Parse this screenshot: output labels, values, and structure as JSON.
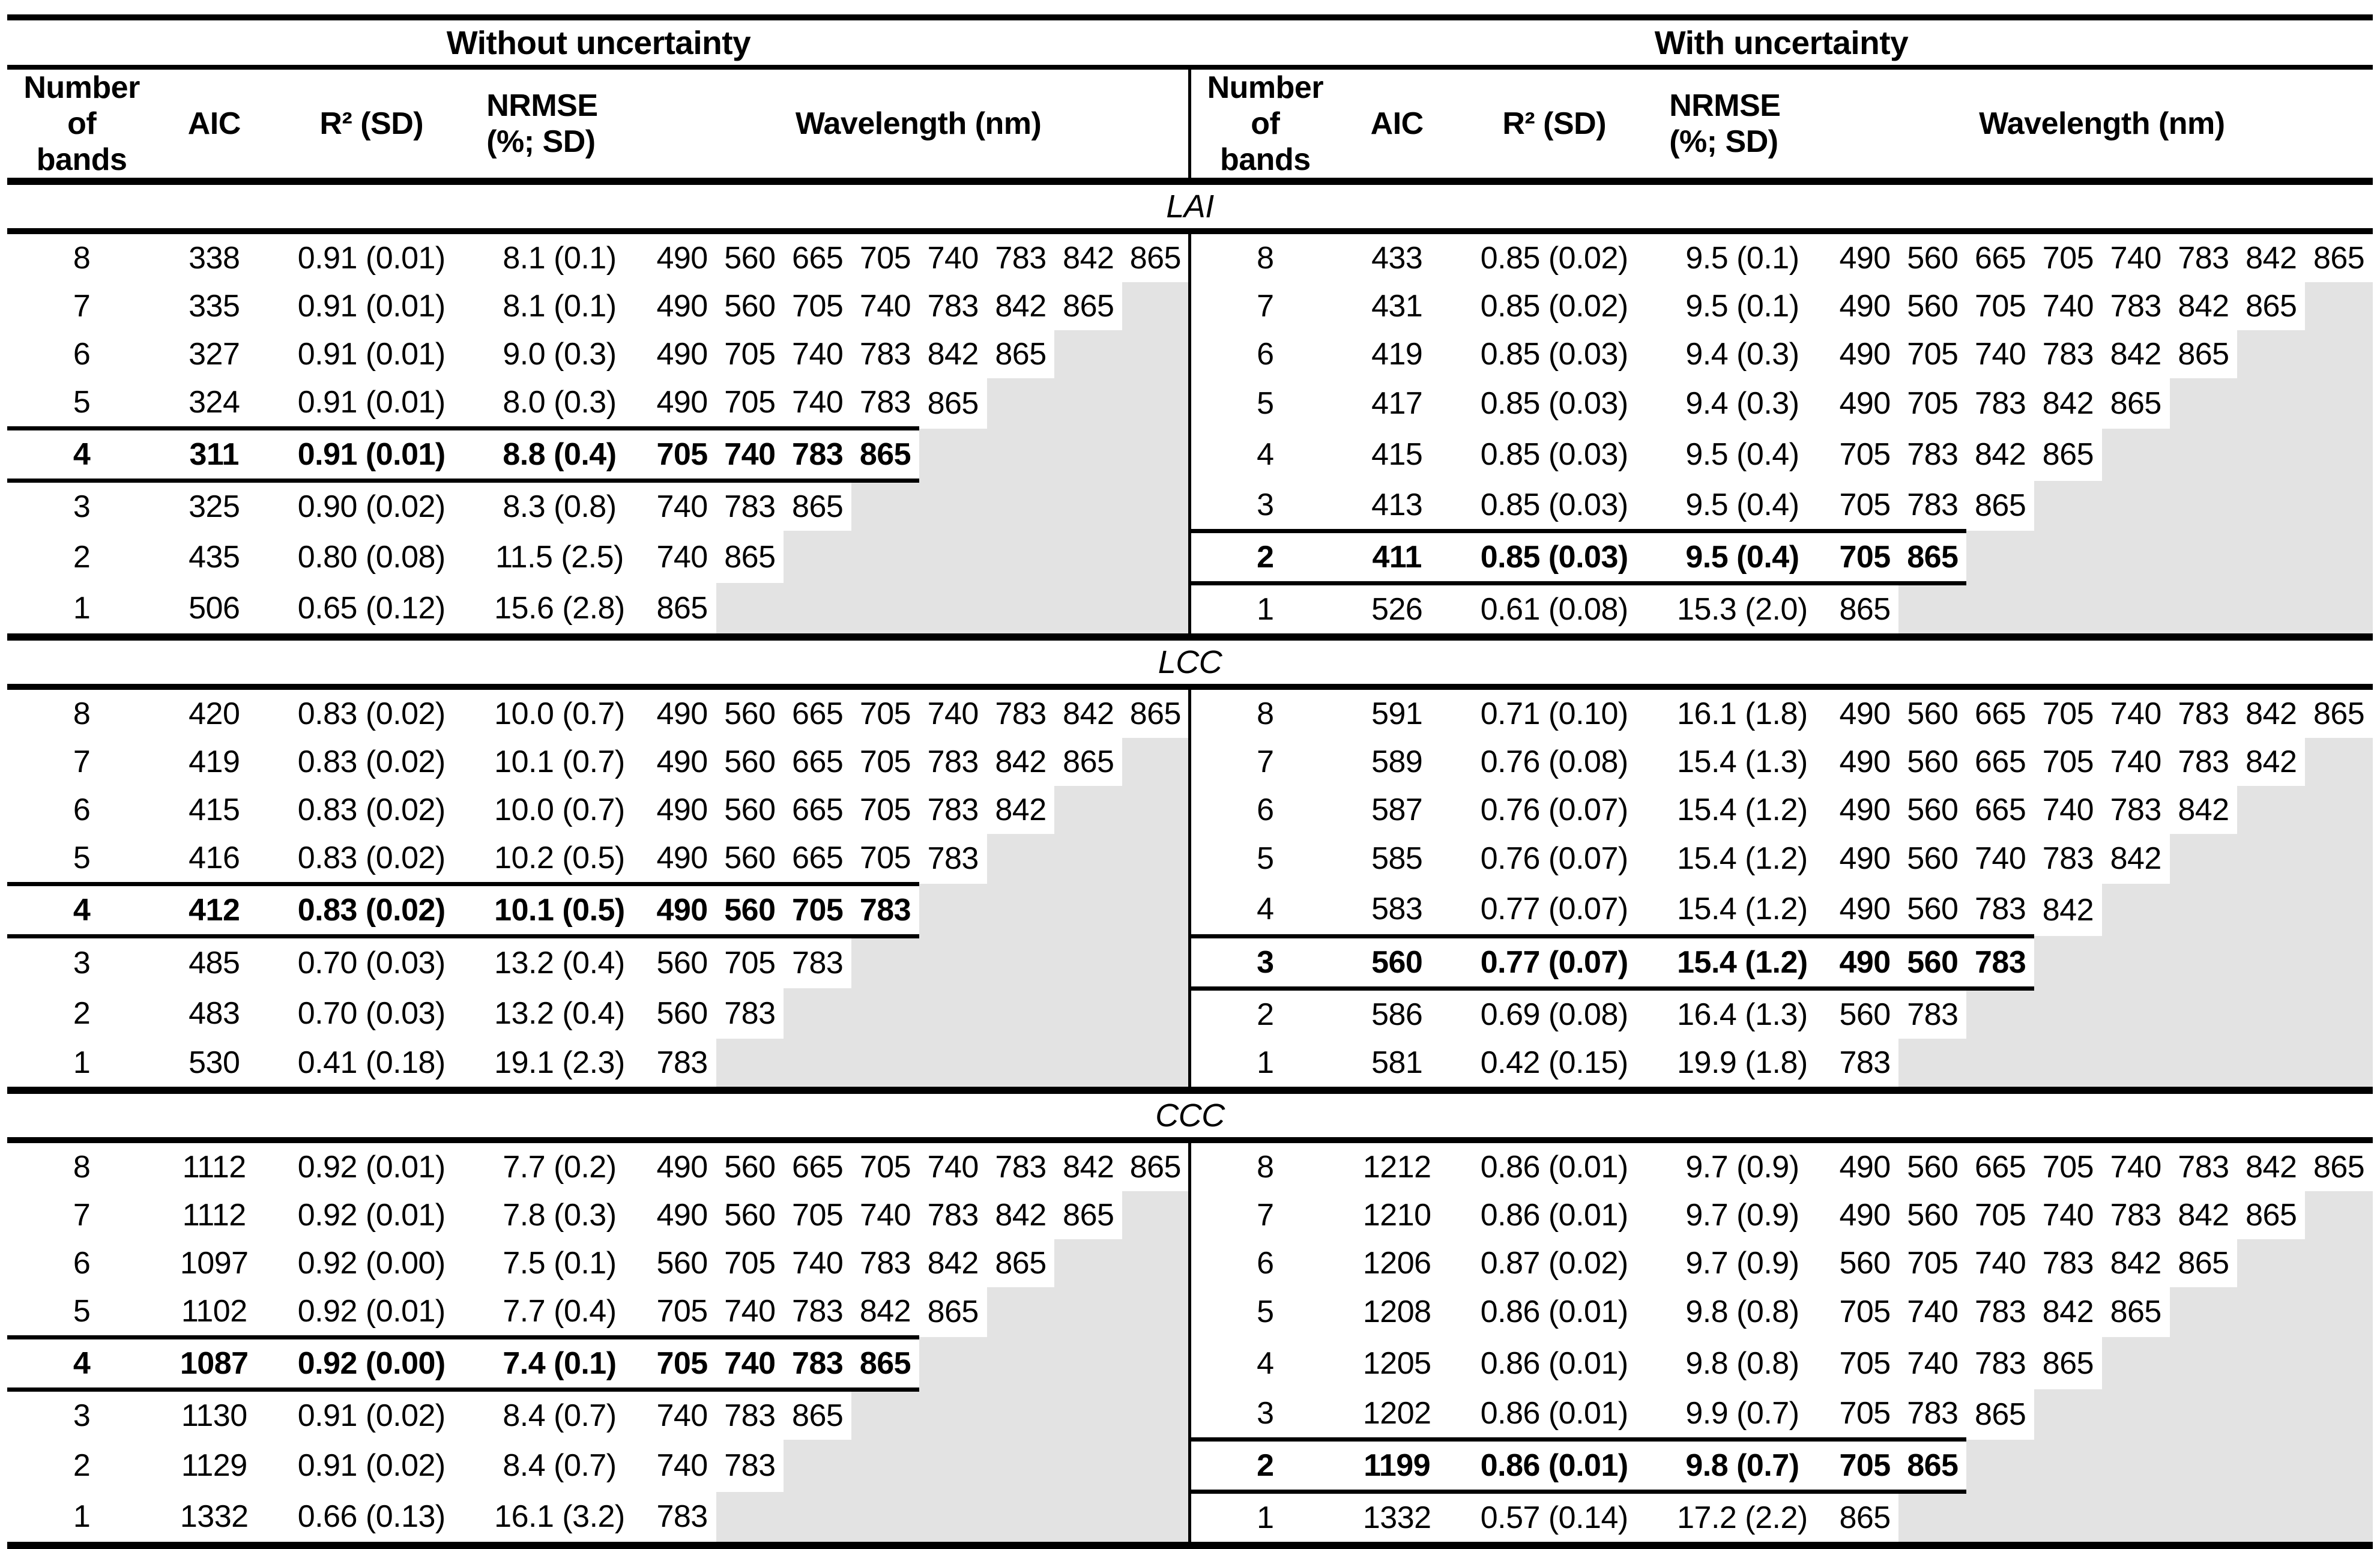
{
  "header": {
    "left_title": "Without uncertainty",
    "right_title": "With uncertainty",
    "columns": {
      "bands": "Number of\nbands",
      "aic": "AIC",
      "r2": "R² (SD)",
      "nrmse": "NRMSE\n(%; SD)",
      "wavelength": "Wavelength (nm)"
    }
  },
  "styles": {
    "highlight_gray": "#e3e3e3",
    "rule_color": "#000000"
  },
  "sections": [
    {
      "label": "LAI",
      "left": {
        "rows": [
          {
            "bands": "8",
            "aic": "338",
            "r2": "0.91 (0.01)",
            "nrmse": "8.1 (0.1)",
            "wavelengths": [
              "490",
              "560",
              "665",
              "705",
              "740",
              "783",
              "842",
              "865"
            ],
            "bold": false
          },
          {
            "bands": "7",
            "aic": "335",
            "r2": "0.91 (0.01)",
            "nrmse": "8.1 (0.1)",
            "wavelengths": [
              "490",
              "560",
              "705",
              "740",
              "783",
              "842",
              "865"
            ],
            "bold": false
          },
          {
            "bands": "6",
            "aic": "327",
            "r2": "0.91 (0.01)",
            "nrmse": "9.0 (0.3)",
            "wavelengths": [
              "490",
              "705",
              "740",
              "783",
              "842",
              "865"
            ],
            "bold": false
          },
          {
            "bands": "5",
            "aic": "324",
            "r2": "0.91 (0.01)",
            "nrmse": "8.0 (0.3)",
            "wavelengths": [
              "490",
              "705",
              "740",
              "783",
              "865"
            ],
            "bold": false
          },
          {
            "bands": "4",
            "aic": "311",
            "r2": "0.91 (0.01)",
            "nrmse": "8.8 (0.4)",
            "wavelengths": [
              "705",
              "740",
              "783",
              "865"
            ],
            "bold": true
          },
          {
            "bands": "3",
            "aic": "325",
            "r2": "0.90 (0.02)",
            "nrmse": "8.3 (0.8)",
            "wavelengths": [
              "740",
              "783",
              "865"
            ],
            "bold": false
          },
          {
            "bands": "2",
            "aic": "435",
            "r2": "0.80 (0.08)",
            "nrmse": "11.5 (2.5)",
            "wavelengths": [
              "740",
              "865"
            ],
            "bold": false
          },
          {
            "bands": "1",
            "aic": "506",
            "r2": "0.65 (0.12)",
            "nrmse": "15.6 (2.8)",
            "wavelengths": [
              "865"
            ],
            "bold": false
          }
        ]
      },
      "right": {
        "rows": [
          {
            "bands": "8",
            "aic": "433",
            "r2": "0.85 (0.02)",
            "nrmse": "9.5 (0.1)",
            "wavelengths": [
              "490",
              "560",
              "665",
              "705",
              "740",
              "783",
              "842",
              "865"
            ],
            "bold": false
          },
          {
            "bands": "7",
            "aic": "431",
            "r2": "0.85 (0.02)",
            "nrmse": "9.5 (0.1)",
            "wavelengths": [
              "490",
              "560",
              "705",
              "740",
              "783",
              "842",
              "865"
            ],
            "bold": false
          },
          {
            "bands": "6",
            "aic": "419",
            "r2": "0.85 (0.03)",
            "nrmse": "9.4 (0.3)",
            "wavelengths": [
              "490",
              "705",
              "740",
              "783",
              "842",
              "865"
            ],
            "bold": false
          },
          {
            "bands": "5",
            "aic": "417",
            "r2": "0.85 (0.03)",
            "nrmse": "9.4 (0.3)",
            "wavelengths": [
              "490",
              "705",
              "783",
              "842",
              "865"
            ],
            "bold": false
          },
          {
            "bands": "4",
            "aic": "415",
            "r2": "0.85 (0.03)",
            "nrmse": "9.5 (0.4)",
            "wavelengths": [
              "705",
              "783",
              "842",
              "865"
            ],
            "bold": false
          },
          {
            "bands": "3",
            "aic": "413",
            "r2": "0.85 (0.03)",
            "nrmse": "9.5 (0.4)",
            "wavelengths": [
              "705",
              "783",
              "865"
            ],
            "bold": false
          },
          {
            "bands": "2",
            "aic": "411",
            "r2": "0.85 (0.03)",
            "nrmse": "9.5 (0.4)",
            "wavelengths": [
              "705",
              "865"
            ],
            "bold": true
          },
          {
            "bands": "1",
            "aic": "526",
            "r2": "0.61 (0.08)",
            "nrmse": "15.3 (2.0)",
            "wavelengths": [
              "865"
            ],
            "bold": false
          }
        ]
      }
    },
    {
      "label": "LCC",
      "left": {
        "rows": [
          {
            "bands": "8",
            "aic": "420",
            "r2": "0.83 (0.02)",
            "nrmse": "10.0 (0.7)",
            "wavelengths": [
              "490",
              "560",
              "665",
              "705",
              "740",
              "783",
              "842",
              "865"
            ],
            "bold": false
          },
          {
            "bands": "7",
            "aic": "419",
            "r2": "0.83 (0.02)",
            "nrmse": "10.1 (0.7)",
            "wavelengths": [
              "490",
              "560",
              "665",
              "705",
              "783",
              "842",
              "865"
            ],
            "bold": false
          },
          {
            "bands": "6",
            "aic": "415",
            "r2": "0.83 (0.02)",
            "nrmse": "10.0 (0.7)",
            "wavelengths": [
              "490",
              "560",
              "665",
              "705",
              "783",
              "842"
            ],
            "bold": false
          },
          {
            "bands": "5",
            "aic": "416",
            "r2": "0.83 (0.02)",
            "nrmse": "10.2 (0.5)",
            "wavelengths": [
              "490",
              "560",
              "665",
              "705",
              "783"
            ],
            "bold": false
          },
          {
            "bands": "4",
            "aic": "412",
            "r2": "0.83 (0.02)",
            "nrmse": "10.1 (0.5)",
            "wavelengths": [
              "490",
              "560",
              "705",
              "783"
            ],
            "bold": true
          },
          {
            "bands": "3",
            "aic": "485",
            "r2": "0.70 (0.03)",
            "nrmse": "13.2 (0.4)",
            "wavelengths": [
              "560",
              "705",
              "783"
            ],
            "bold": false
          },
          {
            "bands": "2",
            "aic": "483",
            "r2": "0.70 (0.03)",
            "nrmse": "13.2 (0.4)",
            "wavelengths": [
              "560",
              "783"
            ],
            "bold": false
          },
          {
            "bands": "1",
            "aic": "530",
            "r2": "0.41 (0.18)",
            "nrmse": "19.1 (2.3)",
            "wavelengths": [
              "783"
            ],
            "bold": false
          }
        ]
      },
      "right": {
        "rows": [
          {
            "bands": "8",
            "aic": "591",
            "r2": "0.71 (0.10)",
            "nrmse": "16.1 (1.8)",
            "wavelengths": [
              "490",
              "560",
              "665",
              "705",
              "740",
              "783",
              "842",
              "865"
            ],
            "bold": false
          },
          {
            "bands": "7",
            "aic": "589",
            "r2": "0.76 (0.08)",
            "nrmse": "15.4 (1.3)",
            "wavelengths": [
              "490",
              "560",
              "665",
              "705",
              "740",
              "783",
              "842"
            ],
            "bold": false
          },
          {
            "bands": "6",
            "aic": "587",
            "r2": "0.76 (0.07)",
            "nrmse": "15.4 (1.2)",
            "wavelengths": [
              "490",
              "560",
              "665",
              "740",
              "783",
              "842"
            ],
            "bold": false
          },
          {
            "bands": "5",
            "aic": "585",
            "r2": "0.76 (0.07)",
            "nrmse": "15.4 (1.2)",
            "wavelengths": [
              "490",
              "560",
              "740",
              "783",
              "842"
            ],
            "bold": false
          },
          {
            "bands": "4",
            "aic": "583",
            "r2": "0.77 (0.07)",
            "nrmse": "15.4 (1.2)",
            "wavelengths": [
              "490",
              "560",
              "783",
              "842"
            ],
            "bold": false
          },
          {
            "bands": "3",
            "aic": "560",
            "r2": "0.77 (0.07)",
            "nrmse": "15.4 (1.2)",
            "wavelengths": [
              "490",
              "560",
              "783"
            ],
            "bold": true
          },
          {
            "bands": "2",
            "aic": "586",
            "r2": "0.69 (0.08)",
            "nrmse": "16.4 (1.3)",
            "wavelengths": [
              "560",
              "783"
            ],
            "bold": false
          },
          {
            "bands": "1",
            "aic": "581",
            "r2": "0.42 (0.15)",
            "nrmse": "19.9 (1.8)",
            "wavelengths": [
              "783"
            ],
            "bold": false
          }
        ]
      }
    },
    {
      "label": "CCC",
      "left": {
        "rows": [
          {
            "bands": "8",
            "aic": "1112",
            "r2": "0.92 (0.01)",
            "nrmse": "7.7 (0.2)",
            "wavelengths": [
              "490",
              "560",
              "665",
              "705",
              "740",
              "783",
              "842",
              "865"
            ],
            "bold": false
          },
          {
            "bands": "7",
            "aic": "1112",
            "r2": "0.92 (0.01)",
            "nrmse": "7.8 (0.3)",
            "wavelengths": [
              "490",
              "560",
              "705",
              "740",
              "783",
              "842",
              "865"
            ],
            "bold": false
          },
          {
            "bands": "6",
            "aic": "1097",
            "r2": "0.92 (0.00)",
            "nrmse": "7.5 (0.1)",
            "wavelengths": [
              "560",
              "705",
              "740",
              "783",
              "842",
              "865"
            ],
            "bold": false
          },
          {
            "bands": "5",
            "aic": "1102",
            "r2": "0.92 (0.01)",
            "nrmse": "7.7 (0.4)",
            "wavelengths": [
              "705",
              "740",
              "783",
              "842",
              "865"
            ],
            "bold": false
          },
          {
            "bands": "4",
            "aic": "1087",
            "r2": "0.92 (0.00)",
            "nrmse": "7.4 (0.1)",
            "wavelengths": [
              "705",
              "740",
              "783",
              "865"
            ],
            "bold": true
          },
          {
            "bands": "3",
            "aic": "1130",
            "r2": "0.91 (0.02)",
            "nrmse": "8.4 (0.7)",
            "wavelengths": [
              "740",
              "783",
              "865"
            ],
            "bold": false
          },
          {
            "bands": "2",
            "aic": "1129",
            "r2": "0.91 (0.02)",
            "nrmse": "8.4 (0.7)",
            "wavelengths": [
              "740",
              "783"
            ],
            "bold": false
          },
          {
            "bands": "1",
            "aic": "1332",
            "r2": "0.66 (0.13)",
            "nrmse": "16.1 (3.2)",
            "wavelengths": [
              "783"
            ],
            "bold": false
          }
        ]
      },
      "right": {
        "rows": [
          {
            "bands": "8",
            "aic": "1212",
            "r2": "0.86 (0.01)",
            "nrmse": "9.7 (0.9)",
            "wavelengths": [
              "490",
              "560",
              "665",
              "705",
              "740",
              "783",
              "842",
              "865"
            ],
            "bold": false
          },
          {
            "bands": "7",
            "aic": "1210",
            "r2": "0.86 (0.01)",
            "nrmse": "9.7 (0.9)",
            "wavelengths": [
              "490",
              "560",
              "705",
              "740",
              "783",
              "842",
              "865"
            ],
            "bold": false
          },
          {
            "bands": "6",
            "aic": "1206",
            "r2": "0.87 (0.02)",
            "nrmse": "9.7 (0.9)",
            "wavelengths": [
              "560",
              "705",
              "740",
              "783",
              "842",
              "865"
            ],
            "bold": false
          },
          {
            "bands": "5",
            "aic": "1208",
            "r2": "0.86 (0.01)",
            "nrmse": "9.8 (0.8)",
            "wavelengths": [
              "705",
              "740",
              "783",
              "842",
              "865"
            ],
            "bold": false
          },
          {
            "bands": "4",
            "aic": "1205",
            "r2": "0.86 (0.01)",
            "nrmse": "9.8 (0.8)",
            "wavelengths": [
              "705",
              "740",
              "783",
              "865"
            ],
            "bold": false
          },
          {
            "bands": "3",
            "aic": "1202",
            "r2": "0.86 (0.01)",
            "nrmse": "9.9 (0.7)",
            "wavelengths": [
              "705",
              "783",
              "865"
            ],
            "bold": false
          },
          {
            "bands": "2",
            "aic": "1199",
            "r2": "0.86 (0.01)",
            "nrmse": "9.8 (0.7)",
            "wavelengths": [
              "705",
              "865"
            ],
            "bold": true
          },
          {
            "bands": "1",
            "aic": "1332",
            "r2": "0.57 (0.14)",
            "nrmse": "17.2 (2.2)",
            "wavelengths": [
              "865"
            ],
            "bold": false
          }
        ]
      }
    }
  ]
}
